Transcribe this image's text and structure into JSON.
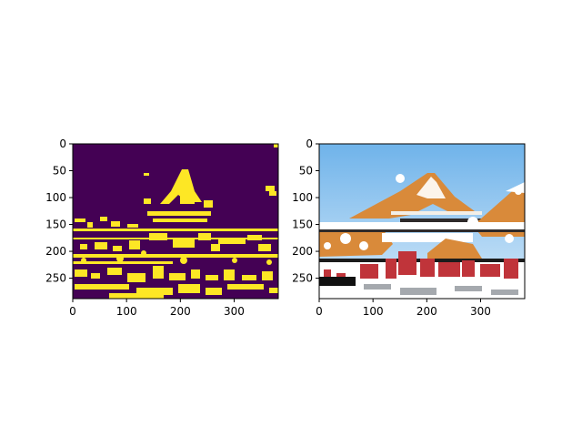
{
  "chart_data": [
    {
      "type": "heatmap",
      "title": "",
      "xlabel": "",
      "ylabel": "",
      "xlim": [
        0,
        382
      ],
      "ylim": [
        288,
        0
      ],
      "xticks": [
        0,
        100,
        200,
        300
      ],
      "yticks": [
        0,
        50,
        100,
        150,
        200,
        250
      ],
      "grid": false,
      "colormap": "viridis",
      "background_color": "#440154",
      "mask_color": "#fde725",
      "description_values": "binary segmentation mask of a palace photo"
    },
    {
      "type": "heatmap",
      "title": "",
      "xlabel": "",
      "ylabel": "",
      "xlim": [
        0,
        382
      ],
      "ylim": [
        288,
        0
      ],
      "xticks": [
        0,
        100,
        200,
        300
      ],
      "yticks": [
        0,
        50,
        100,
        150,
        200,
        250
      ],
      "grid": false,
      "sky_top_color": "#6fb3ea",
      "sky_bottom_color": "#cfe6f8",
      "roof_color": "#d98a3a",
      "wall_color": "#c0343a"
    }
  ]
}
